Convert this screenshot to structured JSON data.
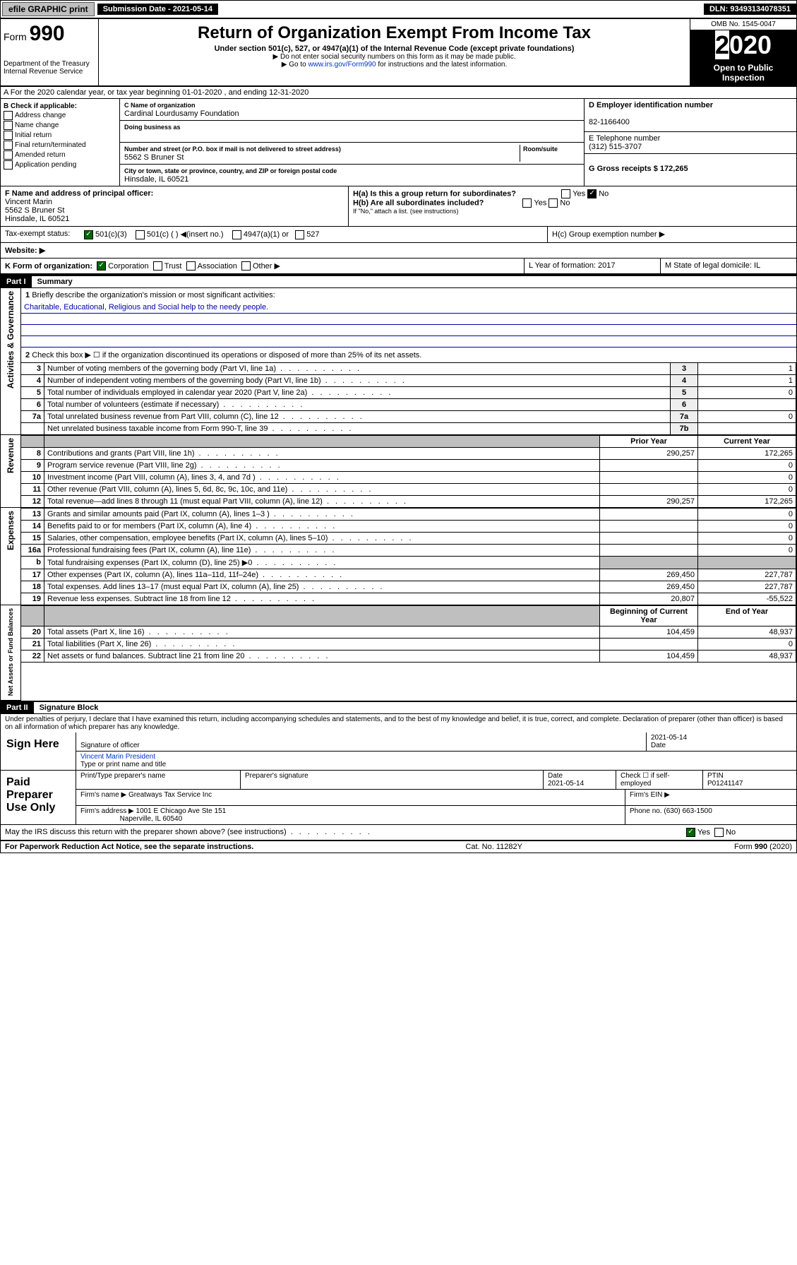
{
  "topbar": {
    "efile": "efile GRAPHIC print",
    "submission": "Submission Date - 2021-05-14",
    "dln": "DLN: 93493134078351"
  },
  "header": {
    "formno": "990",
    "formword": "Form",
    "title": "Return of Organization Exempt From Income Tax",
    "subtitle": "Under section 501(c), 527, or 4947(a)(1) of the Internal Revenue Code (except private foundations)",
    "note1": "▶ Do not enter social security numbers on this form as it may be made public.",
    "note2": "▶ Go to www.irs.gov/Form990 for instructions and the latest information.",
    "dept": "Department of the Treasury",
    "irs": "Internal Revenue Service",
    "omb": "OMB No. 1545-0047",
    "year": "2020",
    "open": "Open to Public Inspection"
  },
  "A": {
    "text": "A For the 2020 calendar year, or tax year beginning 01-01-2020   , and ending 12-31-2020"
  },
  "B": {
    "title": "B Check if applicable:",
    "items": [
      "Address change",
      "Name change",
      "Initial return",
      "Final return/terminated",
      "Amended return",
      "Application pending"
    ]
  },
  "C": {
    "nameLabel": "C Name of organization",
    "name": "Cardinal Lourdusamy Foundation",
    "dbaLabel": "Doing business as",
    "dba": "",
    "addrLabel": "Number and street (or P.O. box if mail is not delivered to street address)",
    "room": "Room/suite",
    "addr": "5562 S Bruner St",
    "cityLabel": "City or town, state or province, country, and ZIP or foreign postal code",
    "city": "Hinsdale, IL  60521"
  },
  "D": {
    "label": "D Employer identification number",
    "ein": "82-1166400"
  },
  "E": {
    "label": "E Telephone number",
    "phone": "(312) 515-3707"
  },
  "G": {
    "label": "G Gross receipts $ 172,265"
  },
  "F": {
    "label": "F  Name and address of principal officer:",
    "name": "Vincent Marin",
    "addr": "5562 S Bruner St",
    "city": "Hinsdale, IL  60521"
  },
  "H": {
    "a": "H(a)  Is this a group return for subordinates?",
    "ano": "No",
    "ayes": "Yes",
    "b": "H(b)  Are all subordinates included?",
    "byes": "Yes",
    "bno": "No",
    "bnote": "If \"No,\" attach a list. (see instructions)",
    "c": "H(c)  Group exemption number ▶"
  },
  "I": {
    "label": "Tax-exempt status:",
    "c3": "501(c)(3)",
    "c": "501(c) (   ) ◀(insert no.)",
    "a": "4947(a)(1) or",
    "s": "527"
  },
  "J": {
    "label": "Website: ▶"
  },
  "K": {
    "label": "K Form of organization:",
    "corp": "Corporation",
    "trust": "Trust",
    "assoc": "Association",
    "other": "Other ▶"
  },
  "L": {
    "label": "L Year of formation: 2017"
  },
  "M": {
    "label": "M State of legal domicile: IL"
  },
  "part1": {
    "bar": "Part I",
    "title": "Summary",
    "l1": "Briefly describe the organization's mission or most significant activities:",
    "mission": "Charitable, Educational, Religious and Social help to the needy people.",
    "l2": "Check this box ▶ ☐  if the organization discontinued its operations or disposed of more than 25% of its net assets.",
    "rows": [
      {
        "n": "3",
        "d": "Number of voting members of the governing body (Part VI, line 1a)",
        "b": "3",
        "v": "1"
      },
      {
        "n": "4",
        "d": "Number of independent voting members of the governing body (Part VI, line 1b)",
        "b": "4",
        "v": "1"
      },
      {
        "n": "5",
        "d": "Total number of individuals employed in calendar year 2020 (Part V, line 2a)",
        "b": "5",
        "v": "0"
      },
      {
        "n": "6",
        "d": "Total number of volunteers (estimate if necessary)",
        "b": "6",
        "v": ""
      },
      {
        "n": "7a",
        "d": "Total unrelated business revenue from Part VIII, column (C), line 12",
        "b": "7a",
        "v": "0"
      },
      {
        "n": "",
        "d": "Net unrelated business taxable income from Form 990-T, line 39",
        "b": "7b",
        "v": ""
      }
    ],
    "hdrPrior": "Prior Year",
    "hdrCurr": "Current Year",
    "rev": [
      {
        "n": "8",
        "d": "Contributions and grants (Part VIII, line 1h)",
        "p": "290,257",
        "c": "172,265"
      },
      {
        "n": "9",
        "d": "Program service revenue (Part VIII, line 2g)",
        "p": "",
        "c": "0"
      },
      {
        "n": "10",
        "d": "Investment income (Part VIII, column (A), lines 3, 4, and 7d )",
        "p": "",
        "c": "0"
      },
      {
        "n": "11",
        "d": "Other revenue (Part VIII, column (A), lines 5, 6d, 8c, 9c, 10c, and 11e)",
        "p": "",
        "c": "0"
      },
      {
        "n": "12",
        "d": "Total revenue—add lines 8 through 11 (must equal Part VIII, column (A), line 12)",
        "p": "290,257",
        "c": "172,265"
      }
    ],
    "exp": [
      {
        "n": "13",
        "d": "Grants and similar amounts paid (Part IX, column (A), lines 1–3 )",
        "p": "",
        "c": "0"
      },
      {
        "n": "14",
        "d": "Benefits paid to or for members (Part IX, column (A), line 4)",
        "p": "",
        "c": "0"
      },
      {
        "n": "15",
        "d": "Salaries, other compensation, employee benefits (Part IX, column (A), lines 5–10)",
        "p": "",
        "c": "0"
      },
      {
        "n": "16a",
        "d": "Professional fundraising fees (Part IX, column (A), line 11e)",
        "p": "",
        "c": "0"
      },
      {
        "n": "b",
        "d": "Total fundraising expenses (Part IX, column (D), line 25) ▶0",
        "p": "shade",
        "c": "shade"
      },
      {
        "n": "17",
        "d": "Other expenses (Part IX, column (A), lines 11a–11d, 11f–24e)",
        "p": "269,450",
        "c": "227,787"
      },
      {
        "n": "18",
        "d": "Total expenses. Add lines 13–17 (must equal Part IX, column (A), line 25)",
        "p": "269,450",
        "c": "227,787"
      },
      {
        "n": "19",
        "d": "Revenue less expenses. Subtract line 18 from line 12",
        "p": "20,807",
        "c": "-55,522"
      }
    ],
    "hdrBeg": "Beginning of Current Year",
    "hdrEnd": "End of Year",
    "net": [
      {
        "n": "20",
        "d": "Total assets (Part X, line 16)",
        "p": "104,459",
        "c": "48,937"
      },
      {
        "n": "21",
        "d": "Total liabilities (Part X, line 26)",
        "p": "",
        "c": "0"
      },
      {
        "n": "22",
        "d": "Net assets or fund balances. Subtract line 21 from line 20",
        "p": "104,459",
        "c": "48,937"
      }
    ],
    "sideA": "Activities & Governance",
    "sideR": "Revenue",
    "sideE": "Expenses",
    "sideN": "Net Assets or Fund Balances"
  },
  "part2": {
    "bar": "Part II",
    "title": "Signature Block",
    "decl": "Under penalties of perjury, I declare that I have examined this return, including accompanying schedules and statements, and to the best of my knowledge and belief, it is true, correct, and complete. Declaration of preparer (other than officer) is based on all information of which preparer has any knowledge.",
    "signhere": "Sign Here",
    "sigoff": "Signature of officer",
    "date": "Date",
    "sigdate": "2021-05-14",
    "officer": "Vincent Marin  President",
    "typelabel": "Type or print name and title",
    "paid": "Paid Preparer Use Only",
    "pname": "Print/Type preparer's name",
    "psig": "Preparer's signature",
    "pdate": "Date",
    "pdateval": "2021-05-14",
    "pcheck": "Check ☐ if self-employed",
    "ptin": "PTIN",
    "ptinval": "P01241147",
    "fname": "Firm's name    ▶ Greatways Tax Service Inc",
    "fein": "Firm's EIN ▶",
    "faddr": "Firm's address ▶ 1001 E Chicago Ave Ste 151",
    "fcity": "Naperville, IL  60540",
    "fphone": "Phone no. (630) 663-1500",
    "discuss": "May the IRS discuss this return with the preparer shown above? (see instructions)",
    "dyes": "Yes",
    "dno": "No"
  },
  "footer": {
    "left": "For Paperwork Reduction Act Notice, see the separate instructions.",
    "mid": "Cat. No. 11282Y",
    "right": "Form 990 (2020)"
  }
}
